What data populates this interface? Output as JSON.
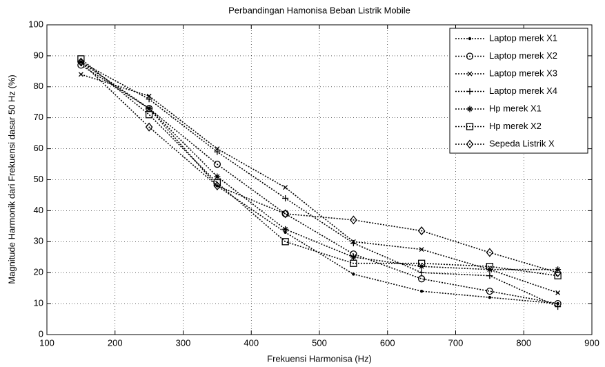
{
  "chart_data": {
    "type": "line",
    "title": "Perbandingan Hamonisa Beban Listrik Mobile",
    "xlabel": "Frekuensi Harmonisa (Hz)",
    "ylabel": "Magnitude Harmonik dari Frekuensi dasar 50 Hz (%)",
    "x": [
      150,
      250,
      350,
      450,
      550,
      650,
      750,
      850
    ],
    "series": [
      {
        "name": "Laptop merek X1",
        "color": "#000000",
        "marker": "dot",
        "values": [
          88,
          73,
          48,
          33,
          19.5,
          14,
          12,
          10
        ]
      },
      {
        "name": "Laptop merek X2",
        "color": "#000000",
        "marker": "circle",
        "values": [
          87,
          73,
          55,
          39,
          26,
          18,
          14,
          10
        ]
      },
      {
        "name": "Laptop merek X3",
        "color": "#000000",
        "marker": "x",
        "values": [
          84,
          77,
          60,
          47.5,
          30,
          27.5,
          21,
          13.5
        ]
      },
      {
        "name": "Laptop merek X4",
        "color": "#000000",
        "marker": "plus",
        "values": [
          88,
          76,
          59,
          44,
          29.5,
          20,
          19,
          9
        ]
      },
      {
        "name": "Hp merek X1",
        "color": "#000000",
        "marker": "star",
        "values": [
          88,
          73,
          51,
          34,
          25,
          22,
          21,
          21
        ]
      },
      {
        "name": "Hp merek X2",
        "color": "#000000",
        "marker": "square",
        "values": [
          89,
          71,
          49,
          30,
          23,
          23,
          22,
          19
        ]
      },
      {
        "name": "Sepeda Listrik X",
        "color": "#000000",
        "marker": "diamond",
        "values": [
          88,
          67,
          48,
          39,
          37,
          33.5,
          26.5,
          20
        ]
      }
    ],
    "xlim": [
      100,
      900
    ],
    "xticks": [
      100,
      200,
      300,
      400,
      500,
      600,
      700,
      800,
      900
    ],
    "ylim": [
      0,
      100
    ],
    "yticks": [
      0,
      10,
      20,
      30,
      40,
      50,
      60,
      70,
      80,
      90,
      100
    ],
    "grid": true,
    "legend": "upper right"
  }
}
